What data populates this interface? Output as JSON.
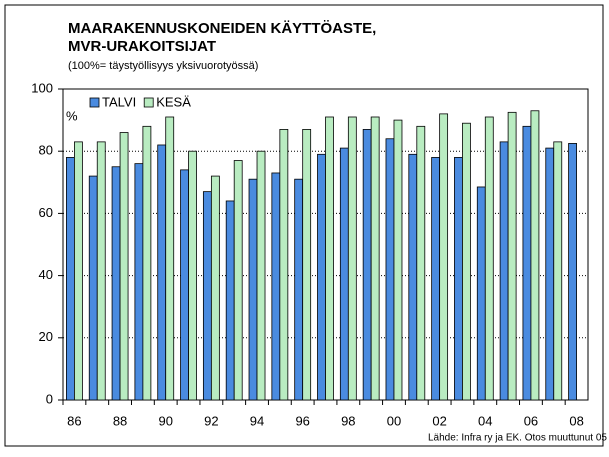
{
  "chart_data": {
    "type": "bar",
    "title": [
      "MAARAKENNUSKONEIDEN KÄYTTÖASTE,",
      "MVR-URAKOITSIJAT"
    ],
    "subtitle": "(100%= täystyöllisyys yksivuorotyössä)",
    "ylabel": "%",
    "source": "Lähde: Infra ry ja EK. Otos muuttunut 05",
    "categories": [
      "86",
      null,
      "88",
      null,
      "90",
      null,
      "92",
      null,
      "94",
      null,
      "96",
      null,
      "98",
      null,
      "00",
      null,
      "02",
      null,
      "04",
      null,
      "06",
      null,
      "08"
    ],
    "series": [
      {
        "name": "TALVI",
        "color": "#4a8be0",
        "values": [
          78,
          72,
          75,
          76,
          82,
          74,
          67,
          64,
          71,
          73,
          71,
          79,
          81,
          87,
          84,
          79,
          78,
          78,
          68.5,
          83,
          88,
          81,
          82.5
        ]
      },
      {
        "name": "KESÄ",
        "color": "#b9ecc1",
        "values": [
          83,
          83,
          86,
          88,
          91,
          80,
          72,
          77,
          80,
          87,
          87,
          91,
          91,
          91,
          90,
          88,
          92,
          89,
          91,
          92.5,
          93,
          83,
          null
        ]
      }
    ],
    "ylim": [
      0,
      100
    ],
    "yticks": [
      0,
      20,
      40,
      60,
      80,
      100
    ],
    "grid": true,
    "legend": "top-left"
  }
}
